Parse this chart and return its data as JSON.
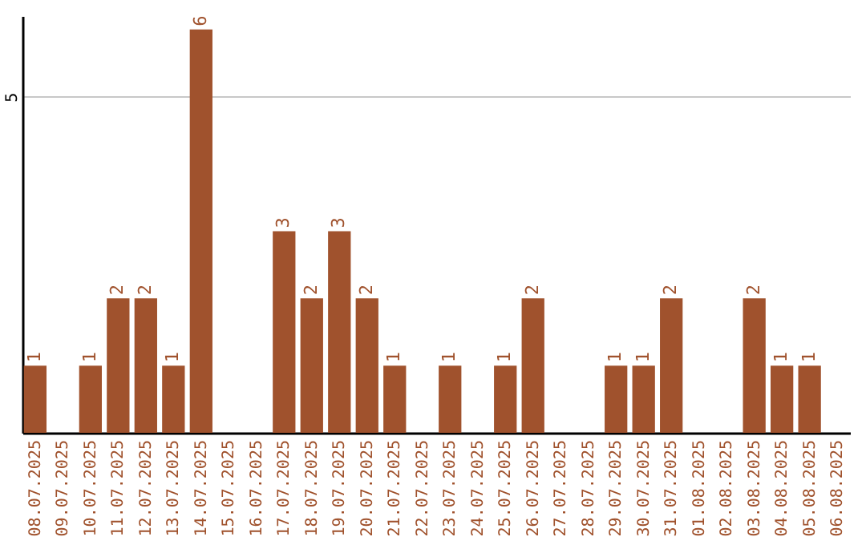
{
  "chart_data": {
    "type": "bar",
    "categories": [
      "08.07.2025",
      "09.07.2025",
      "10.07.2025",
      "11.07.2025",
      "12.07.2025",
      "13.07.2025",
      "14.07.2025",
      "15.07.2025",
      "16.07.2025",
      "17.07.2025",
      "18.07.2025",
      "19.07.2025",
      "20.07.2025",
      "21.07.2025",
      "22.07.2025",
      "23.07.2025",
      "24.07.2025",
      "25.07.2025",
      "26.07.2025",
      "27.07.2025",
      "28.07.2025",
      "29.07.2025",
      "30.07.2025",
      "31.07.2025",
      "01.08.2025",
      "02.08.2025",
      "03.08.2025",
      "04.08.2025",
      "05.08.2025",
      "06.08.2025"
    ],
    "values": [
      1,
      0,
      1,
      2,
      2,
      1,
      6,
      0,
      0,
      3,
      2,
      3,
      2,
      1,
      0,
      1,
      0,
      1,
      2,
      0,
      0,
      1,
      1,
      2,
      0,
      0,
      2,
      1,
      1,
      0
    ],
    "value_labels": [
      "1",
      null,
      "1",
      "2",
      "2",
      "1",
      "6",
      null,
      null,
      "3",
      "2",
      "3",
      "2",
      "1",
      null,
      "1",
      null,
      "1",
      "2",
      null,
      null,
      "1",
      "1",
      "2",
      null,
      null,
      "2",
      "1",
      "1",
      null
    ],
    "color": "#a0522d",
    "ylim": [
      0,
      6.2
    ],
    "yticks": [
      5
    ],
    "grid": "y"
  }
}
